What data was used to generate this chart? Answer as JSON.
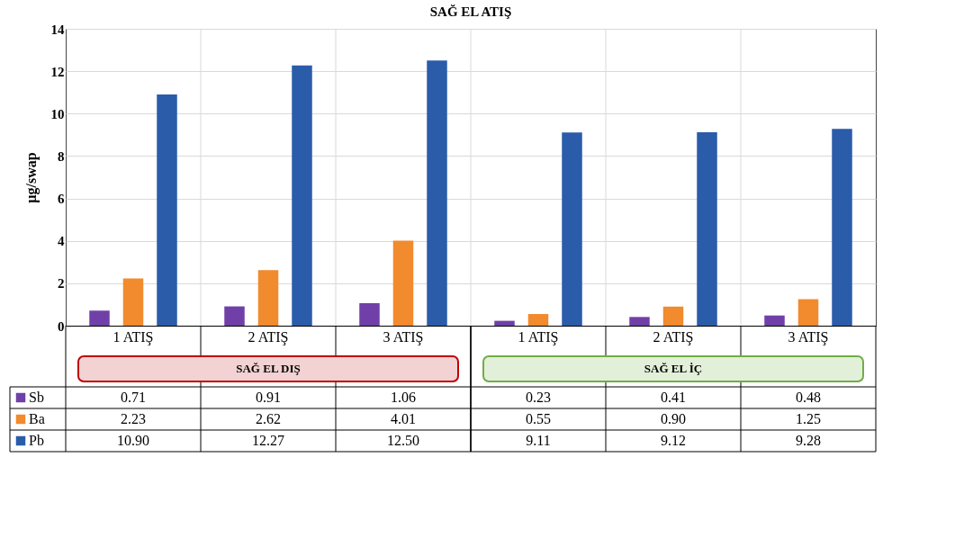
{
  "chart_data": {
    "type": "bar",
    "title": "SAĞ EL ATIŞ",
    "ylabel": "µg/swap",
    "categories": [
      "1 ATIŞ",
      "2 ATIŞ",
      "3 ATIŞ",
      "1 ATIŞ",
      "2 ATIŞ",
      "3 ATIŞ"
    ],
    "series": [
      {
        "name": "Sb",
        "color": "#7040a8",
        "values": [
          0.71,
          0.91,
          1.06,
          0.23,
          0.41,
          0.48
        ],
        "value_labels": [
          "0.71",
          "0.91",
          "1.06",
          "0.23",
          "0.41",
          "0.48"
        ]
      },
      {
        "name": "Ba",
        "color": "#f28a2e",
        "values": [
          2.23,
          2.62,
          4.01,
          0.55,
          0.9,
          1.25
        ],
        "value_labels": [
          "2.23",
          "2.62",
          "4.01",
          "0.55",
          "0.90",
          "1.25"
        ]
      },
      {
        "name": "Pb",
        "color": "#2a5caa",
        "values": [
          10.9,
          12.27,
          12.5,
          9.11,
          9.12,
          9.28
        ],
        "value_labels": [
          "10.90",
          "12.27",
          "12.50",
          "9.11",
          "9.12",
          "9.28"
        ]
      }
    ],
    "annotations": [
      "SAĞ  EL DIŞ",
      "SAĞ EL İÇ"
    ],
    "ylim": [
      0,
      14
    ],
    "yticks": [
      0,
      2,
      4,
      6,
      8,
      10,
      12,
      14
    ],
    "grid": true,
    "legend": "bottom"
  }
}
